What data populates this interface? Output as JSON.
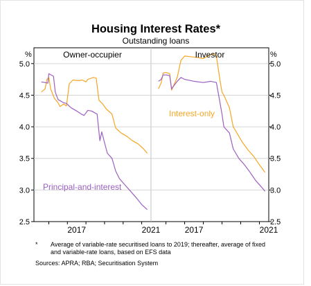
{
  "title": "Housing Interest Rates*",
  "subtitle": "Outstanding loans",
  "footnote_marker": "*",
  "footnote_text": "Average of variable-rate securitised loans to 2019; thereafter, average of fixed and variable-rate loans, based on EFS data",
  "sources": "Sources: APRA; RBA; Securitisation System",
  "chart_data": {
    "type": "line",
    "y_unit": "%",
    "ylim": [
      2.5,
      5.25
    ],
    "yticks": [
      "5.0",
      "4.5",
      "4.0",
      "3.5",
      "3.0",
      "2.5"
    ],
    "xlim": [
      2015.2,
      2021.5
    ],
    "xticks": [
      "2017",
      "2021"
    ],
    "colors": {
      "interest_only": "#f5a623",
      "principal_and_interest": "#9b5fc0"
    },
    "panels": [
      {
        "title": "Owner-occupier",
        "series": [
          {
            "name": "",
            "key": "interest_only",
            "x": [
              2015.6,
              2015.8,
              2015.9,
              2016.0,
              2016.1,
              2016.3,
              2016.5,
              2016.6,
              2016.8,
              2016.95,
              2017.1,
              2017.3,
              2017.6,
              2017.8,
              2018.0,
              2018.1,
              2018.4,
              2018.55,
              2018.7,
              2018.9,
              2019.1,
              2019.4,
              2019.6,
              2019.9,
              2020.2,
              2020.5,
              2020.8,
              2021.1,
              2021.3
            ],
            "y": [
              4.55,
              4.6,
              4.75,
              4.78,
              4.6,
              4.45,
              4.38,
              4.32,
              4.36,
              4.33,
              4.68,
              4.74,
              4.73,
              4.74,
              4.71,
              4.75,
              4.78,
              4.77,
              4.42,
              4.36,
              4.28,
              4.2,
              3.98,
              3.9,
              3.85,
              3.78,
              3.73,
              3.65,
              3.58
            ]
          },
          {
            "name": "Principal-and-interest",
            "key": "principal_and_interest",
            "x": [
              2015.6,
              2015.8,
              2015.95,
              2016.0,
              2016.25,
              2016.35,
              2016.5,
              2016.8,
              2016.95,
              2017.2,
              2017.5,
              2017.75,
              2017.9,
              2018.1,
              2018.3,
              2018.6,
              2018.75,
              2018.85,
              2019.0,
              2019.15,
              2019.4,
              2019.6,
              2019.8,
              2020.1,
              2020.4,
              2020.7,
              2021.0,
              2021.3
            ],
            "y": [
              4.71,
              4.7,
              4.69,
              4.84,
              4.8,
              4.55,
              4.43,
              4.38,
              4.37,
              4.3,
              4.25,
              4.2,
              4.18,
              4.26,
              4.25,
              4.2,
              3.78,
              3.92,
              3.75,
              3.58,
              3.5,
              3.3,
              3.18,
              3.08,
              2.98,
              2.88,
              2.77,
              2.69
            ]
          }
        ]
      },
      {
        "title": "Investor",
        "series": [
          {
            "name": "Interest-only",
            "key": "interest_only",
            "x": [
              2015.6,
              2015.75,
              2015.85,
              2016.0,
              2016.2,
              2016.3,
              2016.6,
              2016.8,
              2017.0,
              2017.3,
              2017.6,
              2018.0,
              2018.5,
              2018.7,
              2018.9,
              2019.0,
              2019.1,
              2019.4,
              2019.6,
              2019.8,
              2020.1,
              2020.4,
              2020.7,
              2021.0,
              2021.3
            ],
            "y": [
              4.6,
              4.7,
              4.85,
              4.86,
              4.84,
              4.58,
              4.78,
              5.05,
              5.12,
              5.11,
              5.1,
              5.08,
              5.16,
              5.12,
              4.72,
              4.55,
              4.5,
              4.3,
              4.0,
              3.9,
              3.75,
              3.63,
              3.53,
              3.4,
              3.28
            ]
          },
          {
            "name": "",
            "key": "principal_and_interest",
            "x": [
              2015.6,
              2015.75,
              2015.85,
              2016.0,
              2016.2,
              2016.3,
              2016.6,
              2016.8,
              2017.0,
              2017.5,
              2018.0,
              2018.4,
              2018.7,
              2018.85,
              2019.0,
              2019.1,
              2019.4,
              2019.6,
              2019.9,
              2020.2,
              2020.5,
              2020.8,
              2021.1,
              2021.3
            ],
            "y": [
              4.72,
              4.75,
              4.82,
              4.82,
              4.81,
              4.6,
              4.72,
              4.78,
              4.75,
              4.72,
              4.7,
              4.72,
              4.7,
              4.45,
              4.2,
              4.0,
              3.9,
              3.65,
              3.5,
              3.4,
              3.28,
              3.15,
              3.05,
              2.98
            ]
          }
        ]
      }
    ]
  }
}
